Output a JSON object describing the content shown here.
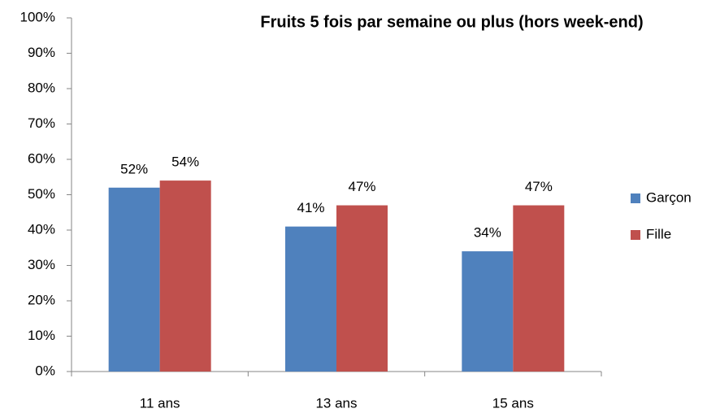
{
  "chart_data": {
    "type": "bar",
    "title": "Fruits 5 fois par semaine ou plus (hors week-end)",
    "categories": [
      "11 ans",
      "13 ans",
      "15 ans"
    ],
    "series": [
      {
        "name": "Garçon",
        "color": "#4f81bd",
        "values": [
          52,
          41,
          34
        ],
        "value_labels": [
          "52%",
          "41%",
          "34%"
        ]
      },
      {
        "name": "Fille",
        "color": "#c0504d",
        "values": [
          54,
          47,
          47
        ],
        "value_labels": [
          "54%",
          "47%",
          "47%"
        ]
      }
    ],
    "ylim": [
      0,
      100
    ],
    "yticks": [
      {
        "value": 0,
        "label": "0%"
      },
      {
        "value": 10,
        "label": "10%"
      },
      {
        "value": 20,
        "label": "20%"
      },
      {
        "value": 30,
        "label": "30%"
      },
      {
        "value": 40,
        "label": "40%"
      },
      {
        "value": 50,
        "label": "50%"
      },
      {
        "value": 60,
        "label": "60%"
      },
      {
        "value": 70,
        "label": "70%"
      },
      {
        "value": 80,
        "label": "80%"
      },
      {
        "value": 90,
        "label": "90%"
      },
      {
        "value": 100,
        "label": "100%"
      }
    ],
    "grid": false,
    "legend": "right"
  }
}
